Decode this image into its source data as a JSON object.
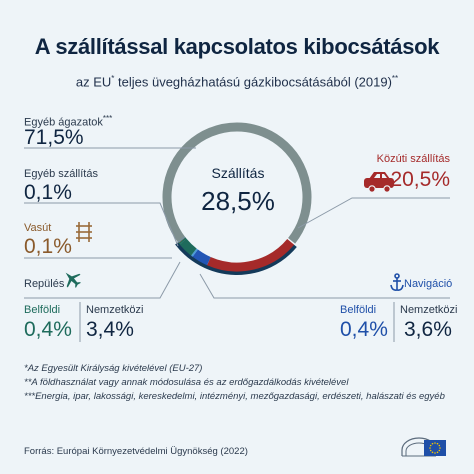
{
  "header": {
    "title": "A szállítással kapcsolatos kibocsátások",
    "subtitle_pre": "az EU",
    "subtitle_sup": "*",
    "subtitle_post": " teljes üvegházhatású gázkibocsátásából (2019)",
    "subtitle_sup2": "**"
  },
  "labels": {
    "egyeb_agazatok": "Egyéb ágazatok",
    "egyeb_agazatok_sup": "***",
    "egyeb_szallitas": "Egyéb szállítás",
    "vasut": "Vasút",
    "repules": "Repülés",
    "belfoldi": "Belföldi",
    "nemzetkozi": "Nemzetközi",
    "kozuti": "Közúti szállítás",
    "navigacio": "Navigáció",
    "center": "Szállítás"
  },
  "values": {
    "egyeb_agazatok": "71,5%",
    "egyeb_szallitas": "0,1%",
    "vasut": "0,1%",
    "repules_belfoldi": "0,4%",
    "repules_nemzetkozi": "3,4%",
    "kozuti": "20,5%",
    "center": "28,5%",
    "nav_belfoldi": "0,4%",
    "nav_nemzetkozi": "3,6%"
  },
  "footnotes": [
    "*Az Egyesült Királyság kivételével (EU-27)",
    "**A földhasználat vagy annak módosulása és az erdőgazdálkodás kivételével",
    "***Energia, ipar, lakossági, kereskedelmi, intézményi, mezőgazdasági, erdészeti, halászati és egyéb"
  ],
  "source": "Forrás: Európai Környezetvédelmi Ügynökség (2022)",
  "colors": {
    "other_sectors": "#7e8f8f",
    "road": "#a52a2a",
    "rail": "#9a6b3a",
    "aviation": "#1e6b5c",
    "navigation": "#2356b5",
    "other_transport": "#4a9bd6",
    "transport_outer": "#143a5a",
    "text_dark": "#0f2541",
    "road_text": "#a52a2a",
    "rail_text": "#8a5a2b",
    "aviation_text": "#1e6b5c",
    "navigation_text": "#1f4fa8"
  },
  "chart_data": {
    "type": "pie",
    "title": "A szállítással kapcsolatos kibocsátások",
    "categories": [
      "Egyéb ágazatok",
      "Közúti szállítás",
      "Navigáció Nemzetközi",
      "Navigáció Belföldi",
      "Repülés Nemzetközi",
      "Repülés Belföldi",
      "Vasút",
      "Egyéb szállítás"
    ],
    "values": [
      71.5,
      20.5,
      3.6,
      0.4,
      3.4,
      0.4,
      0.1,
      0.1
    ],
    "group_total": {
      "name": "Szállítás",
      "value": 28.5
    }
  }
}
